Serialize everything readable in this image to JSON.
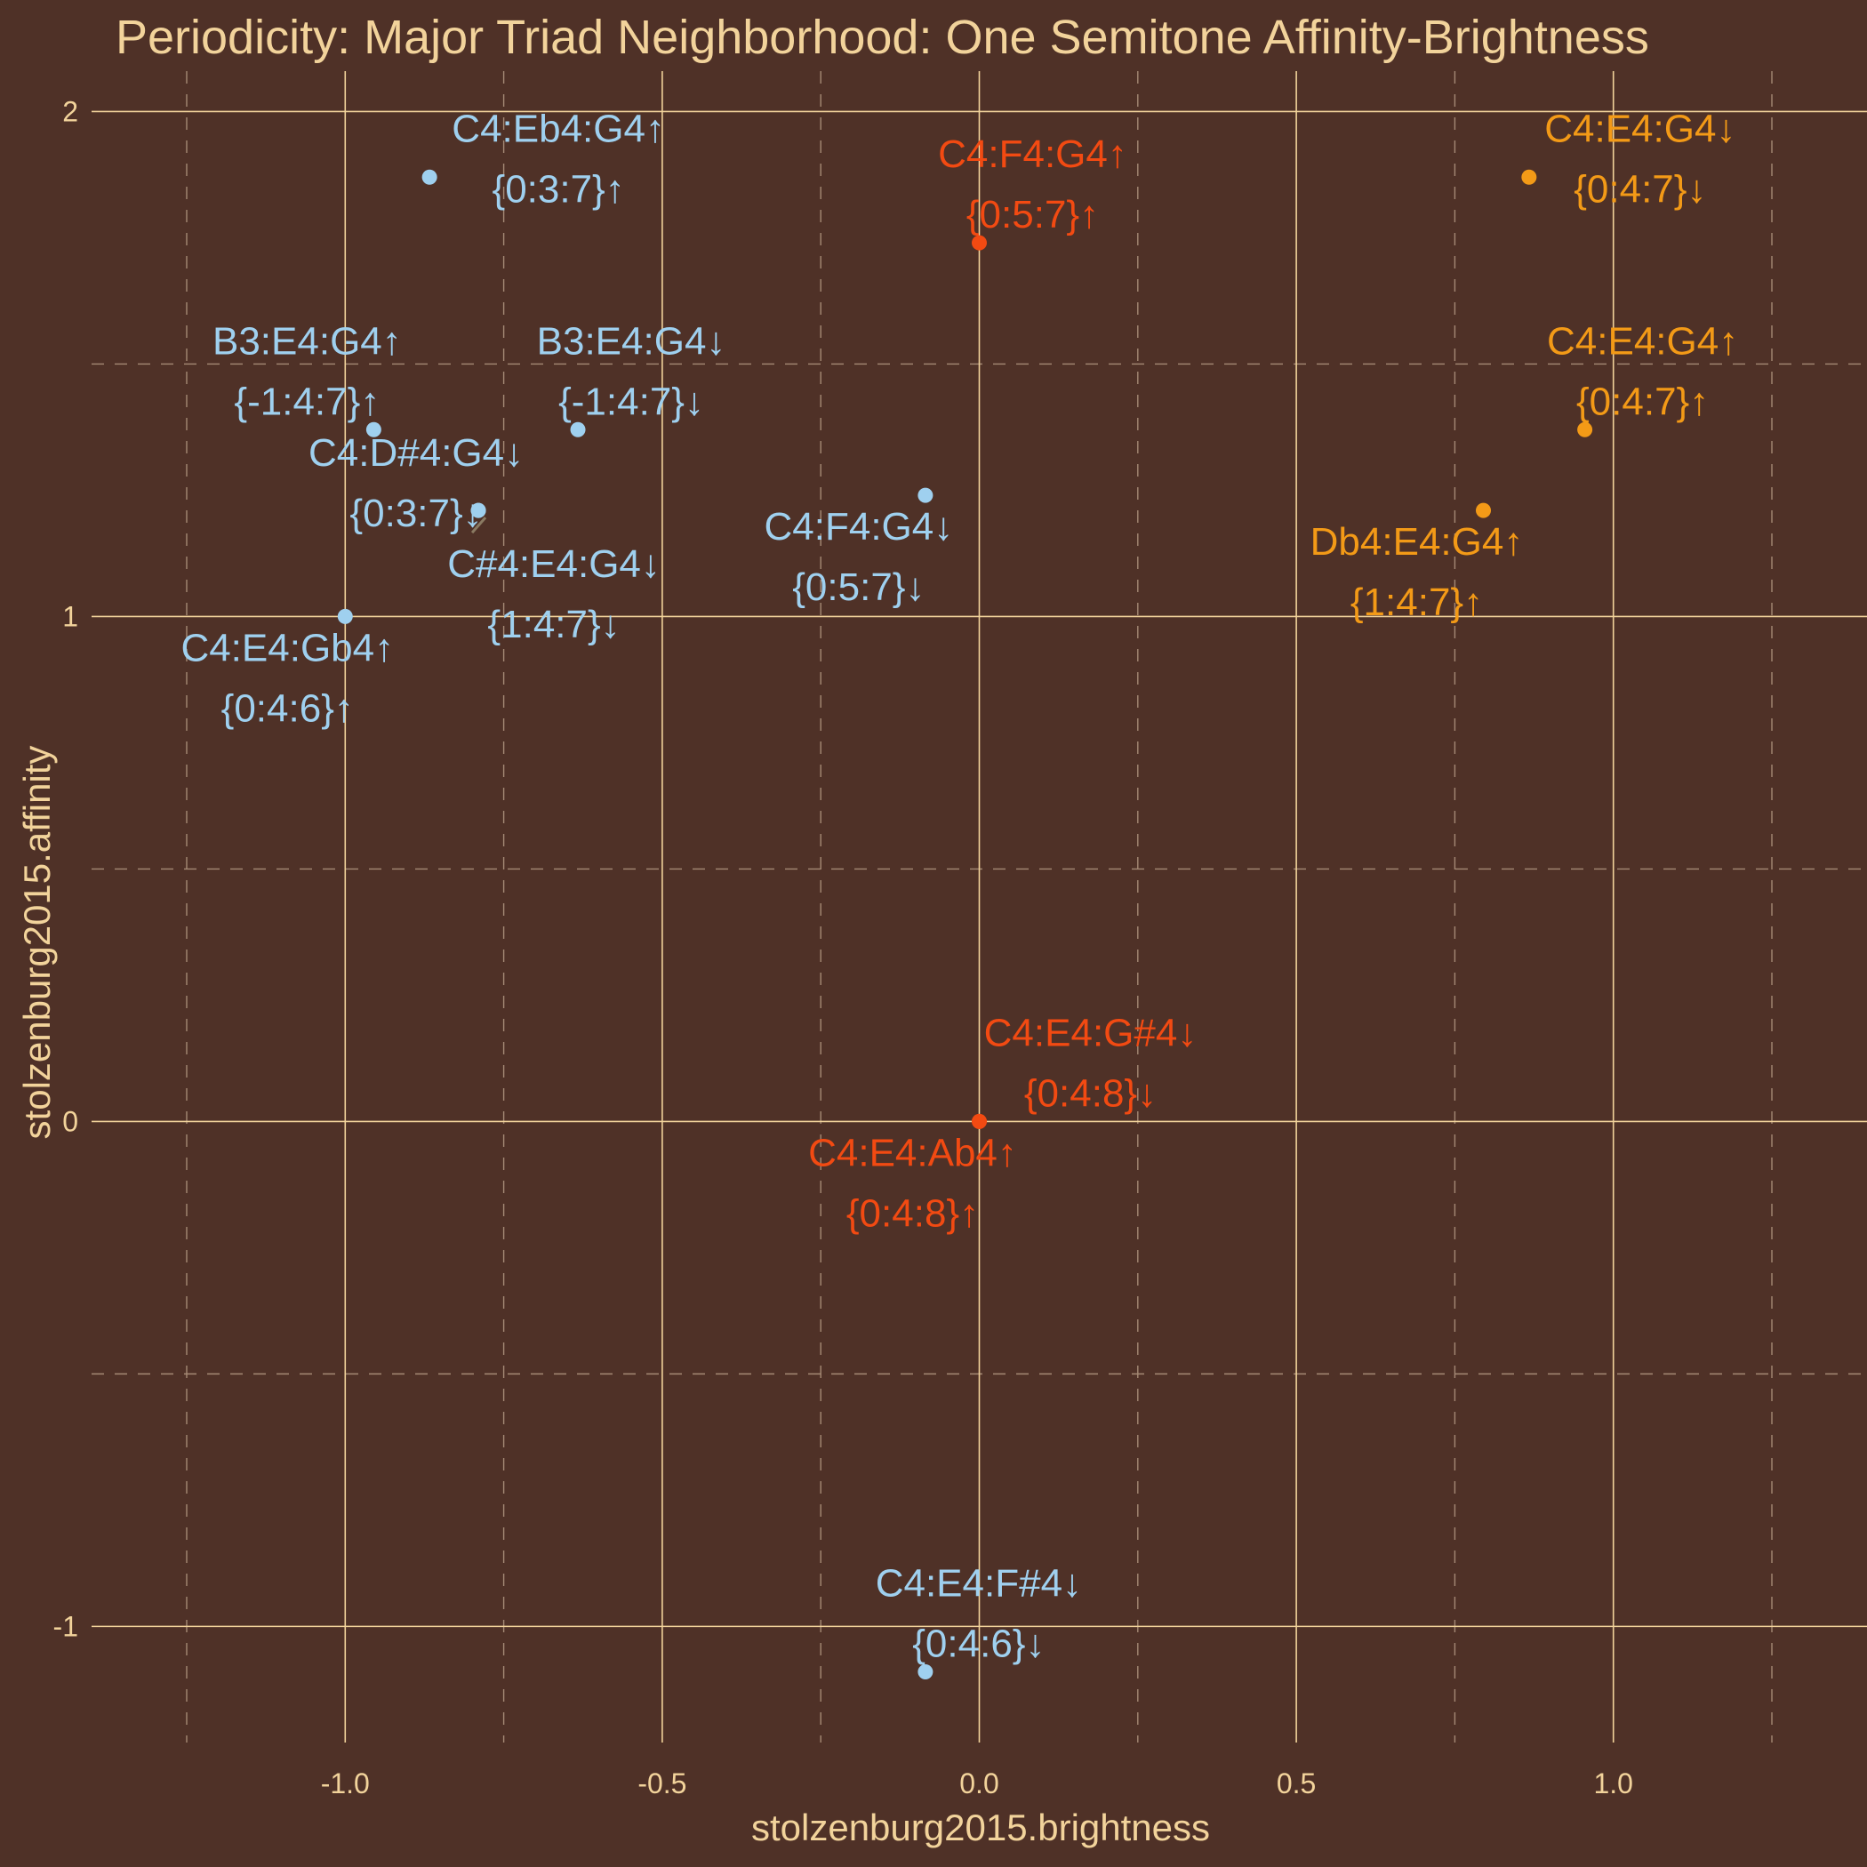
{
  "chart_data": {
    "type": "scatter",
    "title": "Periodicity: Major Triad Neighborhood: One Semitone Affinity-Brightness",
    "xlabel": "stolzenburg2015.brightness",
    "ylabel": "stolzenburg2015.affinity",
    "xlim": [
      -1.4,
      1.4
    ],
    "ylim": [
      -1.23,
      2.08
    ],
    "x_ticks": [
      -1.0,
      -0.5,
      0.0,
      0.5,
      1.0
    ],
    "x_tick_labels": [
      "-1.0",
      "-0.5",
      "0.0",
      "0.5",
      "1.0"
    ],
    "y_ticks": [
      -1,
      0,
      1,
      2
    ],
    "y_tick_labels": [
      "-1",
      "0",
      "1",
      "2"
    ],
    "grid": true,
    "legend": "none",
    "colors": {
      "blue": "#9fd0ef",
      "orange": "#f39a17",
      "red": "#f24a12",
      "background": "#4f3127",
      "text": "#f2d39b"
    },
    "points": [
      {
        "x": -0.867,
        "y": 1.87,
        "color": "blue",
        "name": "C4:Eb4:G4↑",
        "set": "{0:3:7}↑"
      },
      {
        "x": 0.0,
        "y": 1.74,
        "color": "red",
        "name": "C4:F4:G4↑",
        "set": "{0:5:7}↑"
      },
      {
        "x": 0.867,
        "y": 1.87,
        "color": "orange",
        "name": "C4:E4:G4↓",
        "set": "{0:4:7}↓"
      },
      {
        "x": -0.955,
        "y": 1.37,
        "color": "blue",
        "name": "B3:E4:G4↑",
        "set": "{-1:4:7}↑"
      },
      {
        "x": -0.633,
        "y": 1.37,
        "color": "blue",
        "name": "B3:E4:G4↓",
        "set": "{-1:4:7}↓"
      },
      {
        "x": 0.955,
        "y": 1.37,
        "color": "orange",
        "name": "C4:E4:G4↑",
        "set": "{0:4:7}↑"
      },
      {
        "x": -0.79,
        "y": 1.21,
        "color": "blue",
        "name": "C4:D#4:G4↓",
        "set": "{0:3:7}↓"
      },
      {
        "x": -0.79,
        "y": 1.21,
        "color": "blue",
        "name": "C#4:E4:G4↓",
        "set": "{1:4:7}↓"
      },
      {
        "x": -0.085,
        "y": 1.24,
        "color": "blue",
        "name": "C4:F4:G4↓",
        "set": "{0:5:7}↓"
      },
      {
        "x": 0.795,
        "y": 1.21,
        "color": "orange",
        "name": "Db4:E4:G4↑",
        "set": "{1:4:7}↑"
      },
      {
        "x": -1.0,
        "y": 1.0,
        "color": "blue",
        "name": "C4:E4:Gb4↑",
        "set": "{0:4:6}↑"
      },
      {
        "x": 0.0,
        "y": 0.0,
        "color": "red",
        "name": "C4:E4:G#4↓",
        "set": "{0:4:8}↓"
      },
      {
        "x": 0.0,
        "y": 0.0,
        "color": "red",
        "name": "C4:E4:Ab4↑",
        "set": "{0:4:8}↑"
      },
      {
        "x": -0.085,
        "y": -1.09,
        "color": "blue",
        "name": "C4:E4:F#4↓",
        "set": "{0:4:6}↓"
      }
    ]
  }
}
